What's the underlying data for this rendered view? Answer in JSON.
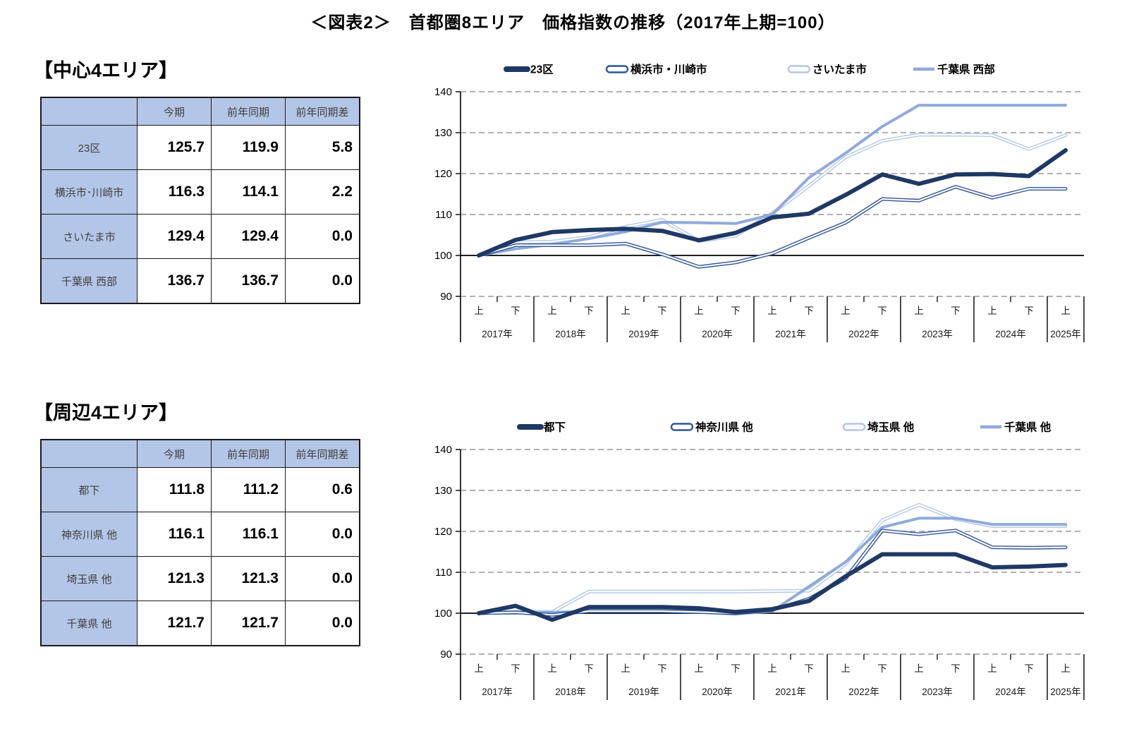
{
  "title": "＜図表2＞　首都圏8エリア　価格指数の推移（2017年上期=100）",
  "colors": {
    "navy": "#1F3864",
    "medium_blue": "#2F5597",
    "pale_blue": "#B4C7E7",
    "light_blue": "#8FAADC",
    "gridline": "#A6A6A6",
    "baseline": "#000000",
    "table_header_fill": "#B4C6E7"
  },
  "sections": [
    {
      "heading": "【中心4エリア】",
      "table": {
        "columns": [
          "今期",
          "前年同期",
          "前年同期差"
        ],
        "rows": [
          {
            "label": "23区",
            "current": "125.7",
            "prev_year": "119.9",
            "diff": "5.8"
          },
          {
            "label": "横浜市･川崎市",
            "current": "116.3",
            "prev_year": "114.1",
            "diff": "2.2"
          },
          {
            "label": "さいたま市",
            "current": "129.4",
            "prev_year": "129.4",
            "diff": "0.0"
          },
          {
            "label": "千葉県 西部",
            "current": "136.7",
            "prev_year": "136.7",
            "diff": "0.0"
          }
        ]
      }
    },
    {
      "heading": "【周辺4エリア】",
      "table": {
        "columns": [
          "今期",
          "前年同期",
          "前年同期差"
        ],
        "rows": [
          {
            "label": "都下",
            "current": "111.8",
            "prev_year": "111.2",
            "diff": "0.6"
          },
          {
            "label": "神奈川県 他",
            "current": "116.1",
            "prev_year": "116.1",
            "diff": "0.0"
          },
          {
            "label": "埼玉県 他",
            "current": "121.3",
            "prev_year": "121.3",
            "diff": "0.0"
          },
          {
            "label": "千葉県 他",
            "current": "121.7",
            "prev_year": "121.7",
            "diff": "0.0"
          }
        ]
      }
    }
  ],
  "chart_data": [
    {
      "type": "line",
      "title": "中心4エリア 価格指数の推移",
      "ylim": [
        90,
        140
      ],
      "yticks": [
        140,
        130,
        120,
        110,
        100,
        90
      ],
      "baseline": 100,
      "grid": "dashed-horizontal",
      "legend_position": "top",
      "x": {
        "years": [
          {
            "label": "2017年",
            "halves": [
              "上",
              "下"
            ]
          },
          {
            "label": "2018年",
            "halves": [
              "上",
              "下"
            ]
          },
          {
            "label": "2019年",
            "halves": [
              "上",
              "下"
            ]
          },
          {
            "label": "2020年",
            "halves": [
              "上",
              "下"
            ]
          },
          {
            "label": "2021年",
            "halves": [
              "上",
              "下"
            ]
          },
          {
            "label": "2022年",
            "halves": [
              "上",
              "下"
            ]
          },
          {
            "label": "2023年",
            "halves": [
              "上",
              "下"
            ]
          },
          {
            "label": "2024年",
            "halves": [
              "上",
              "下"
            ]
          },
          {
            "label": "2025年",
            "halves": [
              "上"
            ]
          }
        ]
      },
      "series": [
        {
          "name": "23区",
          "style": "thick",
          "color": "#1F3864",
          "values": [
            100,
            103.8,
            105.7,
            106.2,
            106.5,
            106.0,
            103.7,
            105.5,
            109.3,
            110.2,
            114.8,
            119.8,
            117.5,
            119.8,
            119.9,
            119.4,
            125.7
          ]
        },
        {
          "name": "横浜市・川崎市",
          "style": "double",
          "color": "#2F5597",
          "values": [
            100,
            102.5,
            102.5,
            102.5,
            102.9,
            100.3,
            97.2,
            98.3,
            100.5,
            104.3,
            108.0,
            113.8,
            113.4,
            116.8,
            114.1,
            116.3,
            116.3
          ]
        },
        {
          "name": "さいたま市",
          "style": "double",
          "color": "#B4C7E7",
          "values": [
            100,
            103.2,
            103.4,
            104.5,
            107.0,
            108.7,
            103.5,
            104.8,
            110.3,
            117.0,
            124.0,
            128.0,
            129.5,
            129.5,
            129.4,
            126.0,
            129.4
          ]
        },
        {
          "name": "千葉県 西部",
          "style": "solid",
          "color": "#8FAADC",
          "values": [
            100,
            101.6,
            102.7,
            104.1,
            105.8,
            108.1,
            108.0,
            107.8,
            110.0,
            119.0,
            125.0,
            131.5,
            136.7,
            136.7,
            136.7,
            136.7,
            136.7
          ]
        }
      ]
    },
    {
      "type": "line",
      "title": "周辺4エリア 価格指数の推移",
      "ylim": [
        90,
        140
      ],
      "yticks": [
        140,
        130,
        120,
        110,
        100,
        90
      ],
      "baseline": 100,
      "grid": "dashed-horizontal",
      "legend_position": "top",
      "x": {
        "years": [
          {
            "label": "2017年",
            "halves": [
              "上",
              "下"
            ]
          },
          {
            "label": "2018年",
            "halves": [
              "上",
              "下"
            ]
          },
          {
            "label": "2019年",
            "halves": [
              "上",
              "下"
            ]
          },
          {
            "label": "2020年",
            "halves": [
              "上",
              "下"
            ]
          },
          {
            "label": "2021年",
            "halves": [
              "上",
              "下"
            ]
          },
          {
            "label": "2022年",
            "halves": [
              "上",
              "下"
            ]
          },
          {
            "label": "2023年",
            "halves": [
              "上",
              "下"
            ]
          },
          {
            "label": "2024年",
            "halves": [
              "上",
              "下"
            ]
          },
          {
            "label": "2025年",
            "halves": [
              "上"
            ]
          }
        ]
      },
      "series": [
        {
          "name": "都下",
          "style": "thick",
          "color": "#1F3864",
          "values": [
            100,
            101.8,
            98.4,
            101.5,
            101.5,
            101.5,
            101.2,
            100.3,
            101.0,
            103.0,
            109.0,
            114.4,
            114.4,
            114.4,
            111.2,
            111.4,
            111.8
          ]
        },
        {
          "name": "神奈川県 他",
          "style": "double",
          "color": "#2F5597",
          "values": [
            100,
            100.2,
            99.6,
            100.5,
            100.5,
            100.5,
            100.3,
            100.0,
            100.8,
            103.5,
            108.5,
            120.2,
            119.3,
            120.2,
            116.1,
            116.0,
            116.1
          ]
        },
        {
          "name": "埼玉県 他",
          "style": "double",
          "color": "#B4C7E7",
          "values": [
            100,
            100.3,
            100.3,
            105.3,
            105.3,
            105.3,
            105.3,
            105.3,
            105.4,
            105.5,
            112.0,
            122.7,
            126.5,
            123.0,
            121.3,
            121.3,
            121.3
          ]
        },
        {
          "name": "千葉県 他",
          "style": "solid",
          "color": "#8FAADC",
          "values": [
            100,
            100.0,
            100.2,
            100.5,
            100.5,
            100.5,
            100.2,
            99.8,
            100.5,
            106.5,
            112.5,
            121.0,
            123.2,
            123.2,
            121.7,
            121.7,
            121.7
          ]
        }
      ]
    }
  ]
}
